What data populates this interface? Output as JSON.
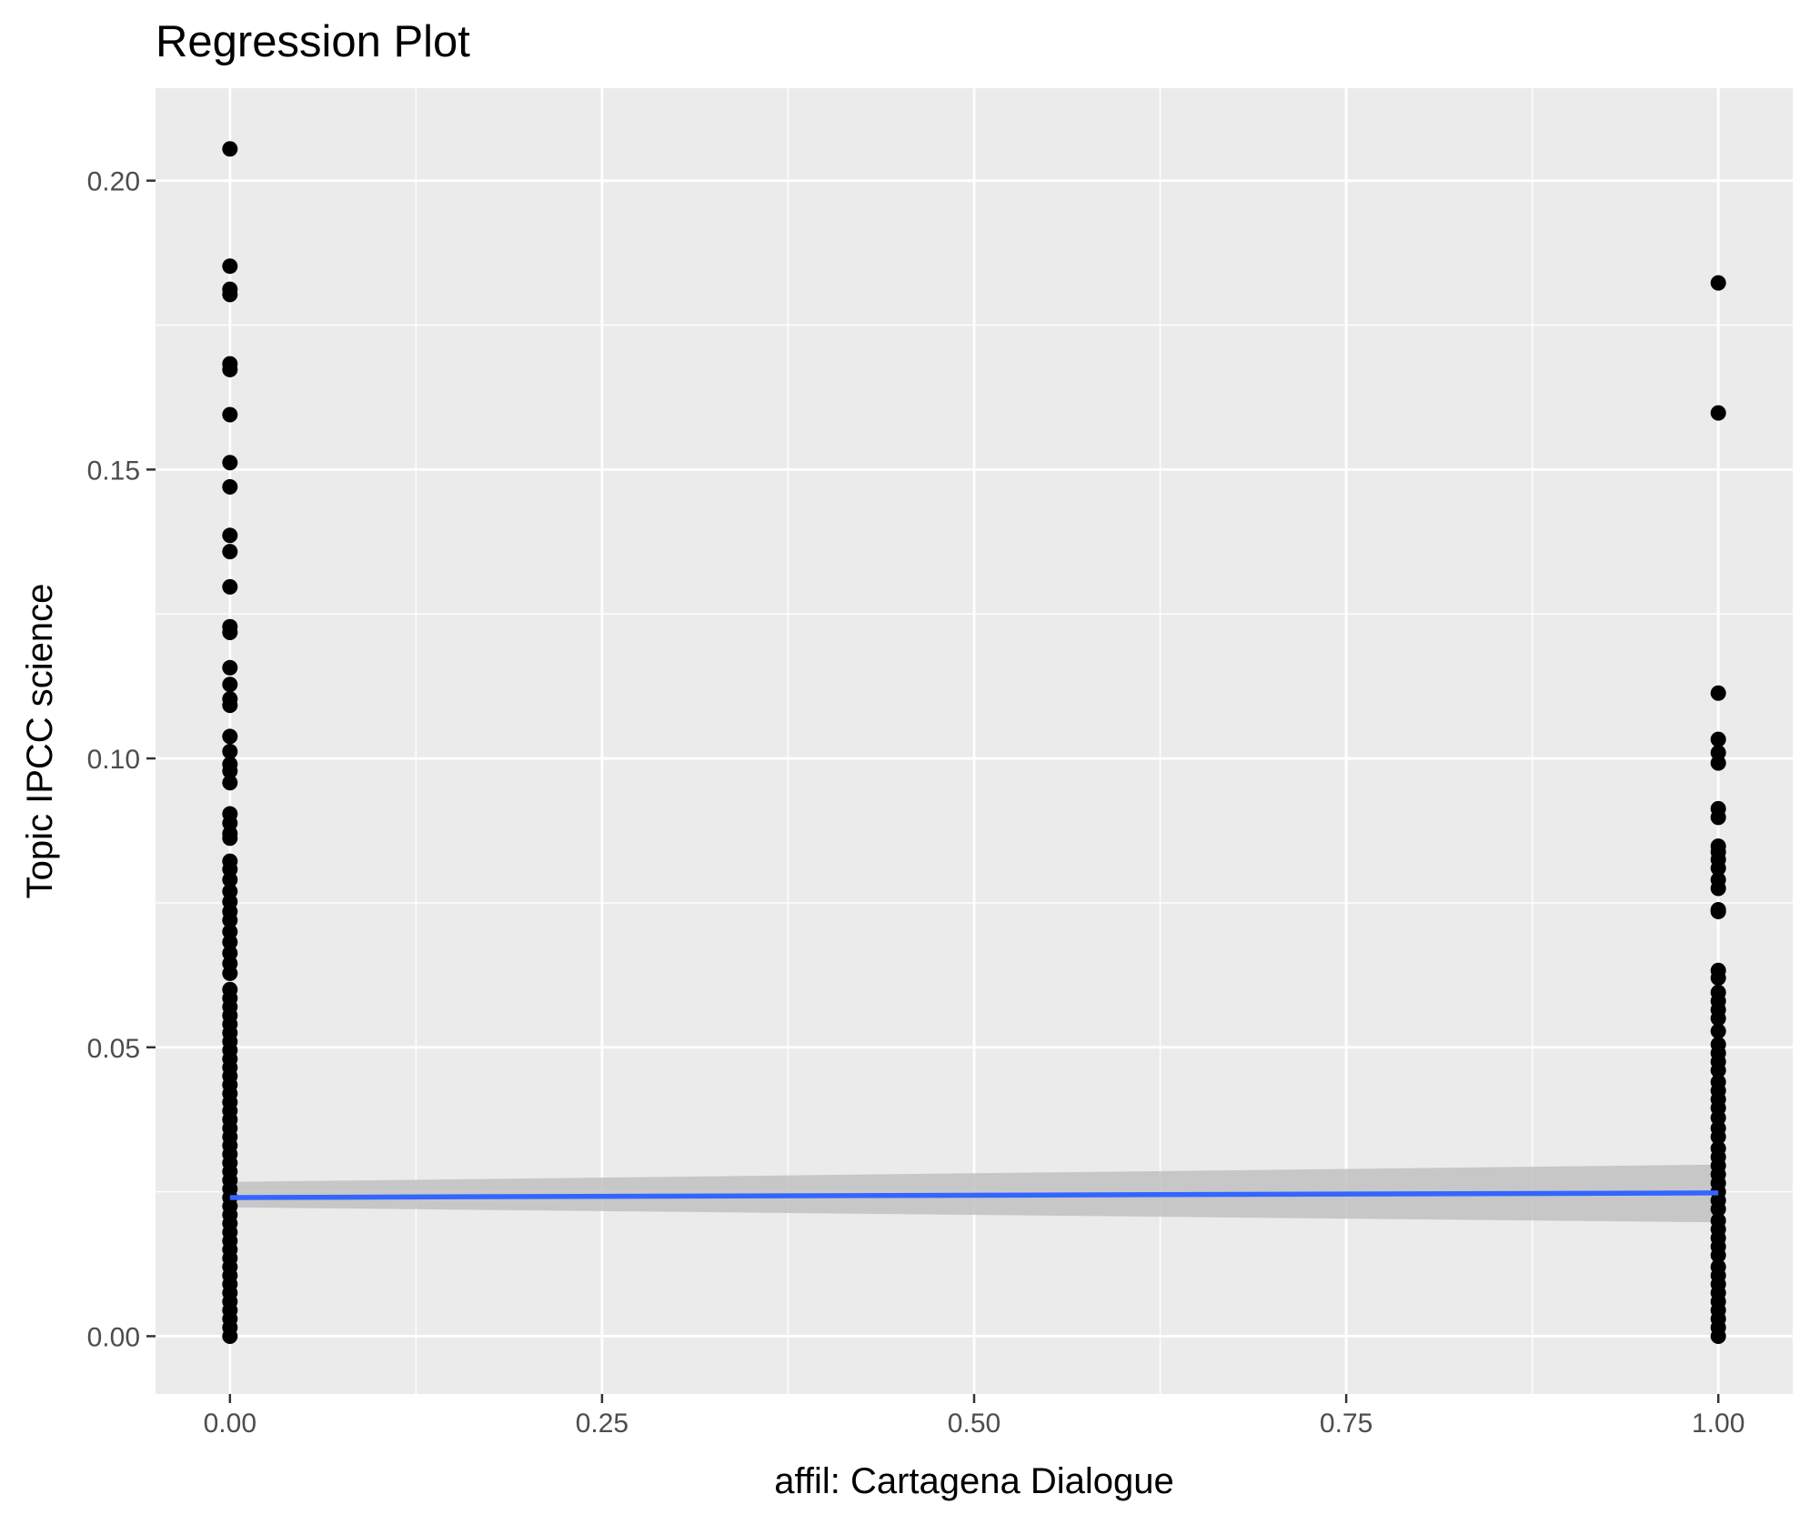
{
  "chart_data": {
    "type": "scatter",
    "title": "Regression Plot",
    "xlabel": "affil: Cartagena Dialogue",
    "ylabel": "Topic IPCC science",
    "xlim": [
      -0.05,
      1.05
    ],
    "ylim": [
      -0.01,
      0.216
    ],
    "x_ticks": [
      0,
      0.25,
      0.5,
      0.75,
      1
    ],
    "x_tick_labels": [
      "0.00",
      "0.25",
      "0.50",
      "0.75",
      "1.00"
    ],
    "y_ticks": [
      0,
      0.05,
      0.1,
      0.15,
      0.2
    ],
    "y_tick_labels": [
      "0.00",
      "0.05",
      "0.10",
      "0.15",
      "0.20"
    ],
    "grid": true,
    "legend": "none",
    "series": [
      {
        "x": 0,
        "values": [
          0.2055,
          0.1852,
          0.1812,
          0.1803,
          0.1683,
          0.1673,
          0.1595,
          0.1512,
          0.147,
          0.1386,
          0.1358,
          0.1297,
          0.1228,
          0.1218,
          0.1157,
          0.1128,
          0.1103,
          0.1092,
          0.1038,
          0.1012,
          0.099,
          0.0978,
          0.0958,
          0.0904,
          0.0888,
          0.087,
          0.0862,
          0.0822,
          0.0808,
          0.079,
          0.077,
          0.0752,
          0.0735,
          0.072,
          0.07,
          0.0682,
          0.0663,
          0.0645,
          0.0628,
          0.06,
          0.0585,
          0.057,
          0.0555,
          0.054,
          0.0525,
          0.051,
          0.0495,
          0.048,
          0.0465,
          0.045,
          0.0435,
          0.042,
          0.0405,
          0.039,
          0.0375,
          0.036,
          0.0345,
          0.033,
          0.0315,
          0.03,
          0.0285,
          0.027,
          0.0255,
          0.024,
          0.0225,
          0.021,
          0.0195,
          0.018,
          0.0165,
          0.015,
          0.0135,
          0.012,
          0.0105,
          0.009,
          0.0075,
          0.006,
          0.0045,
          0.003,
          0.0015,
          0.0
        ]
      },
      {
        "x": 1,
        "values": [
          0.1823,
          0.1598,
          0.1113,
          0.1033,
          0.101,
          0.0992,
          0.0913,
          0.0898,
          0.0848,
          0.0838,
          0.0825,
          0.081,
          0.079,
          0.0775,
          0.0738,
          0.0735,
          0.0633,
          0.062,
          0.0595,
          0.058,
          0.0565,
          0.055,
          0.0528,
          0.0505,
          0.049,
          0.0475,
          0.046,
          0.044,
          0.0425,
          0.041,
          0.0395,
          0.0378,
          0.036,
          0.0345,
          0.0325,
          0.031,
          0.0295,
          0.028,
          0.0265,
          0.025,
          0.0235,
          0.022,
          0.02,
          0.0185,
          0.017,
          0.0155,
          0.014,
          0.012,
          0.0105,
          0.009,
          0.0075,
          0.006,
          0.0045,
          0.003,
          0.0015,
          0.0
        ]
      }
    ],
    "regression": {
      "x": [
        0,
        1
      ],
      "y": [
        0.024,
        0.0248
      ],
      "ci_lower": [
        0.0223,
        0.0197
      ],
      "ci_upper": [
        0.0267,
        0.0297
      ]
    },
    "colors": {
      "panel": "#ebebeb",
      "grid": "#ffffff",
      "points": "#000000",
      "line": "#3366ff",
      "ribbon": "#bebebe"
    }
  }
}
